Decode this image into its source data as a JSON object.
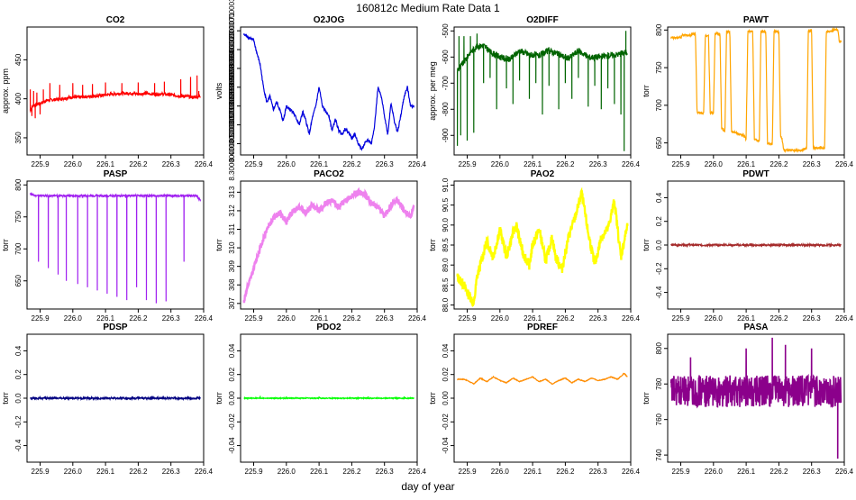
{
  "figure": {
    "title": "160812c   Medium Rate Data 1",
    "xlabel": "day of year"
  },
  "chart_data": [
    {
      "type": "line",
      "title": "CO2",
      "ylabel": "approx. ppm",
      "color": "#ff0000",
      "xlim": [
        225.86,
        226.4
      ],
      "ylim": [
        328,
        492
      ],
      "xticks": [
        225.9,
        226.0,
        226.1,
        226.2,
        226.3,
        226.4
      ],
      "yticks": [
        350,
        400,
        450
      ],
      "x": [
        225.87,
        225.88,
        225.9,
        225.92,
        225.95,
        225.98,
        226.0,
        226.02,
        226.05,
        226.08,
        226.1,
        226.12,
        226.15,
        226.18,
        226.2,
        226.22,
        226.25,
        226.28,
        226.3,
        226.32,
        226.35,
        226.37,
        226.39
      ],
      "y": [
        385,
        392,
        394,
        398,
        399,
        401,
        402,
        402,
        403,
        404,
        405,
        406,
        407,
        407,
        406,
        407,
        406,
        406,
        405,
        404,
        403,
        402,
        403
      ],
      "noise": 2,
      "spikes": [
        [
          225.87,
          412
        ],
        [
          225.875,
          378
        ],
        [
          225.88,
          410
        ],
        [
          225.885,
          375
        ],
        [
          225.89,
          408
        ],
        [
          225.9,
          380
        ],
        [
          225.91,
          412
        ],
        [
          225.93,
          420
        ],
        [
          225.96,
          418
        ],
        [
          226.0,
          420
        ],
        [
          226.03,
          418
        ],
        [
          226.06,
          419
        ],
        [
          226.1,
          421
        ],
        [
          226.15,
          420
        ],
        [
          226.2,
          421
        ],
        [
          226.25,
          420
        ],
        [
          226.28,
          422
        ],
        [
          226.33,
          425
        ],
        [
          226.36,
          428
        ],
        [
          226.38,
          430
        ],
        [
          226.385,
          410
        ]
      ]
    },
    {
      "type": "line",
      "title": "O2JOG",
      "ylabel": "volts",
      "color": "#0000dd",
      "xlim": [
        225.86,
        226.4
      ],
      "ylim": [
        8.24,
        8.92
      ],
      "xticks": [
        225.9,
        226.0,
        226.1,
        226.2,
        226.3,
        226.4
      ],
      "yticks": [
        8.3,
        8.4,
        8.5,
        8.6,
        8.7,
        8.8,
        8.9
      ],
      "x": [
        225.87,
        225.88,
        225.9,
        225.91,
        225.92,
        225.93,
        225.94,
        225.95,
        225.96,
        225.97,
        225.98,
        225.99,
        226.0,
        226.02,
        226.04,
        226.05,
        226.06,
        226.07,
        226.08,
        226.09,
        226.1,
        226.11,
        226.12,
        226.13,
        226.14,
        226.15,
        226.16,
        226.17,
        226.18,
        226.19,
        226.2,
        226.21,
        226.22,
        226.23,
        226.24,
        226.25,
        226.26,
        226.27,
        226.28,
        226.29,
        226.3,
        226.31,
        226.32,
        226.33,
        226.34,
        226.35,
        226.36,
        226.37,
        226.38,
        226.39
      ],
      "y": [
        8.88,
        8.87,
        8.85,
        8.78,
        8.72,
        8.6,
        8.52,
        8.55,
        8.48,
        8.52,
        8.48,
        8.42,
        8.5,
        8.47,
        8.4,
        8.47,
        8.42,
        8.35,
        8.44,
        8.5,
        8.6,
        8.5,
        8.47,
        8.45,
        8.37,
        8.43,
        8.37,
        8.35,
        8.38,
        8.36,
        8.33,
        8.35,
        8.3,
        8.27,
        8.3,
        8.32,
        8.3,
        8.4,
        8.6,
        8.55,
        8.45,
        8.35,
        8.52,
        8.42,
        8.36,
        8.45,
        8.55,
        8.6,
        8.5,
        8.5
      ],
      "noise": 0.008
    },
    {
      "type": "line",
      "title": "O2DIFF",
      "ylabel": "approx. per meg",
      "color": "#006400",
      "xlim": [
        225.86,
        226.4
      ],
      "ylim": [
        -975,
        -485
      ],
      "xticks": [
        225.9,
        226.0,
        226.1,
        226.2,
        226.3,
        226.4
      ],
      "yticks": [
        -900,
        -800,
        -700,
        -600,
        -500
      ],
      "x": [
        225.87,
        225.89,
        225.91,
        225.93,
        225.95,
        225.97,
        226.0,
        226.03,
        226.06,
        226.09,
        226.12,
        226.15,
        226.18,
        226.21,
        226.24,
        226.27,
        226.3,
        226.33,
        226.36,
        226.39
      ],
      "y": [
        -650,
        -620,
        -580,
        -560,
        -555,
        -580,
        -600,
        -610,
        -575,
        -590,
        -595,
        -575,
        -590,
        -605,
        -575,
        -600,
        -600,
        -595,
        -590,
        -580
      ],
      "noise": 12,
      "spikes": [
        [
          225.87,
          -940
        ],
        [
          225.875,
          -520
        ],
        [
          225.88,
          -900
        ],
        [
          225.89,
          -520
        ],
        [
          225.9,
          -920
        ],
        [
          225.91,
          -520
        ],
        [
          225.92,
          -890
        ],
        [
          225.93,
          -510
        ],
        [
          225.95,
          -700
        ],
        [
          225.97,
          -680
        ],
        [
          225.99,
          -800
        ],
        [
          226.02,
          -720
        ],
        [
          226.04,
          -780
        ],
        [
          226.06,
          -690
        ],
        [
          226.09,
          -760
        ],
        [
          226.11,
          -700
        ],
        [
          226.13,
          -820
        ],
        [
          226.15,
          -710
        ],
        [
          226.18,
          -800
        ],
        [
          226.2,
          -700
        ],
        [
          226.22,
          -760
        ],
        [
          226.24,
          -680
        ],
        [
          226.27,
          -790
        ],
        [
          226.29,
          -710
        ],
        [
          226.31,
          -800
        ],
        [
          226.33,
          -720
        ],
        [
          226.35,
          -780
        ],
        [
          226.37,
          -820
        ],
        [
          226.38,
          -960
        ],
        [
          226.385,
          -500
        ]
      ]
    },
    {
      "type": "line",
      "title": "PAWT",
      "ylabel": "torr",
      "color": "#ffa500",
      "xlim": [
        225.86,
        226.4
      ],
      "ylim": [
        634,
        804
      ],
      "xticks": [
        225.9,
        226.0,
        226.1,
        226.2,
        226.3,
        226.4
      ],
      "yticks": [
        650,
        700,
        750,
        800
      ],
      "x": [
        225.87,
        225.9,
        225.905,
        225.93,
        225.935,
        225.945,
        225.95,
        225.97,
        225.975,
        225.985,
        225.99,
        226.0,
        226.005,
        226.02,
        226.025,
        226.035,
        226.04,
        226.05,
        226.055,
        226.09,
        226.095,
        226.1,
        226.105,
        226.12,
        226.125,
        226.14,
        226.145,
        226.16,
        226.165,
        226.18,
        226.185,
        226.2,
        226.205,
        226.21,
        226.215,
        226.27,
        226.275,
        226.285,
        226.29,
        226.3,
        226.305,
        226.34,
        226.345,
        226.36,
        226.365,
        226.38,
        226.385,
        226.39
      ],
      "y": [
        790,
        790,
        793,
        793,
        795,
        795,
        690,
        690,
        793,
        793,
        690,
        690,
        795,
        795,
        670,
        665,
        798,
        798,
        665,
        660,
        658,
        655,
        798,
        798,
        655,
        652,
        798,
        798,
        650,
        648,
        798,
        798,
        660,
        655,
        640,
        640,
        642,
        642,
        798,
        800,
        643,
        643,
        798,
        798,
        800,
        800,
        785,
        785
      ],
      "noise": 1.5
    },
    {
      "type": "line",
      "title": "PASP",
      "ylabel": "torr",
      "color": "#a020f0",
      "xlim": [
        225.86,
        226.4
      ],
      "ylim": [
        606,
        806
      ],
      "xticks": [
        225.9,
        226.0,
        226.1,
        226.2,
        226.3,
        226.4
      ],
      "yticks": [
        650,
        700,
        750,
        800
      ],
      "x": [
        225.87,
        225.88,
        225.9,
        225.92,
        225.95,
        226.0,
        226.05,
        226.1,
        226.15,
        226.2,
        226.25,
        226.3,
        226.35,
        226.38,
        226.39
      ],
      "y": [
        786,
        784,
        783,
        783,
        783,
        783,
        783,
        783,
        783,
        783,
        783,
        783,
        783,
        783,
        775
      ],
      "noise": 1.5,
      "spikes": [
        [
          225.895,
          680
        ],
        [
          225.925,
          670
        ],
        [
          225.955,
          660
        ],
        [
          225.98,
          650
        ],
        [
          226.015,
          645
        ],
        [
          226.045,
          640
        ],
        [
          226.075,
          635
        ],
        [
          226.105,
          630
        ],
        [
          226.135,
          625
        ],
        [
          226.165,
          620
        ],
        [
          226.195,
          640
        ],
        [
          226.225,
          620
        ],
        [
          226.255,
          615
        ],
        [
          226.285,
          618
        ],
        [
          226.34,
          680
        ]
      ]
    },
    {
      "type": "line",
      "title": "PACO2",
      "ylabel": "torr",
      "color": "#ee82ee",
      "xlim": [
        225.86,
        226.4
      ],
      "ylim": [
        306.7,
        313.6
      ],
      "xticks": [
        225.9,
        226.0,
        226.1,
        226.2,
        226.3,
        226.4
      ],
      "yticks": [
        307,
        308,
        309,
        310,
        311,
        312,
        313
      ],
      "x": [
        225.87,
        225.88,
        225.89,
        225.9,
        225.92,
        225.94,
        225.96,
        225.98,
        226.0,
        226.02,
        226.04,
        226.06,
        226.08,
        226.1,
        226.12,
        226.14,
        226.16,
        226.18,
        226.2,
        226.22,
        226.24,
        226.26,
        226.28,
        226.3,
        226.32,
        226.34,
        226.36,
        226.38,
        226.39
      ],
      "y": [
        307.1,
        307.8,
        308.3,
        308.9,
        310.0,
        311.0,
        311.6,
        311.9,
        311.4,
        312.0,
        312.2,
        311.9,
        312.3,
        312.0,
        312.4,
        312.6,
        312.2,
        312.5,
        312.8,
        313.0,
        312.9,
        312.4,
        312.2,
        311.7,
        312.3,
        312.6,
        312.0,
        311.7,
        312.2
      ],
      "noise": 0.15
    },
    {
      "type": "line",
      "title": "PAO2",
      "ylabel": "torr",
      "color": "#ffff00",
      "xlim": [
        225.86,
        226.4
      ],
      "ylim": [
        87.9,
        91.1
      ],
      "xticks": [
        225.9,
        226.0,
        226.1,
        226.2,
        226.3,
        226.4
      ],
      "yticks": [
        88.0,
        88.5,
        89.0,
        89.5,
        90.0,
        90.5,
        91.0
      ],
      "x": [
        225.87,
        225.88,
        225.89,
        225.9,
        225.91,
        225.92,
        225.93,
        225.95,
        225.96,
        225.98,
        226.0,
        226.02,
        226.04,
        226.05,
        226.07,
        226.09,
        226.1,
        226.12,
        226.14,
        226.16,
        226.17,
        226.19,
        226.21,
        226.23,
        226.25,
        226.27,
        226.29,
        226.31,
        226.33,
        226.35,
        226.37,
        226.38,
        226.39
      ],
      "y": [
        88.7,
        88.6,
        88.5,
        88.3,
        88.2,
        88.0,
        88.7,
        89.3,
        89.6,
        89.2,
        89.9,
        89.2,
        89.8,
        90.0,
        89.3,
        89.0,
        89.5,
        89.9,
        89.1,
        89.7,
        89.2,
        88.9,
        89.7,
        90.2,
        90.8,
        89.8,
        89.0,
        89.7,
        89.9,
        90.6,
        89.2,
        89.6,
        90.0
      ],
      "noise": 0.12
    },
    {
      "type": "line",
      "title": "PDWT",
      "ylabel": "torr",
      "color": "#a52a2a",
      "xlim": [
        225.86,
        226.4
      ],
      "ylim": [
        -0.54,
        0.54
      ],
      "xticks": [
        225.9,
        226.0,
        226.1,
        226.2,
        226.3,
        226.4
      ],
      "yticks": [
        -0.4,
        -0.2,
        0.0,
        0.2,
        0.4
      ],
      "x": [
        225.87,
        226.39
      ],
      "y": [
        0.0,
        0.0
      ],
      "noise": 0.008
    },
    {
      "type": "line",
      "title": "PDSP",
      "ylabel": "torr",
      "color": "#000080",
      "xlim": [
        225.86,
        226.4
      ],
      "ylim": [
        -0.54,
        0.54
      ],
      "xticks": [
        225.9,
        226.0,
        226.1,
        226.2,
        226.3,
        226.4
      ],
      "yticks": [
        -0.4,
        -0.2,
        0.0,
        0.2,
        0.4
      ],
      "x": [
        225.87,
        226.39
      ],
      "y": [
        0.0,
        0.0
      ],
      "noise": 0.008
    },
    {
      "type": "line",
      "title": "PDO2",
      "ylabel": "torr",
      "color": "#00ff00",
      "xlim": [
        225.86,
        226.4
      ],
      "ylim": [
        -0.054,
        0.054
      ],
      "xticks": [
        225.9,
        226.0,
        226.1,
        226.2,
        226.3,
        226.4
      ],
      "yticks": [
        -0.04,
        -0.02,
        0.0,
        0.02,
        0.04
      ],
      "x": [
        225.87,
        226.39
      ],
      "y": [
        0.0,
        0.0
      ],
      "noise": 0.0004,
      "spikes": [
        [
          225.92,
          0.002
        ],
        [
          226.0,
          0.0015
        ],
        [
          226.1,
          0.0015
        ],
        [
          226.25,
          0.0015
        ],
        [
          226.36,
          0.0015
        ]
      ]
    },
    {
      "type": "line",
      "title": "PDREF",
      "ylabel": "torr",
      "color": "#ff8c00",
      "xlim": [
        225.86,
        226.4
      ],
      "ylim": [
        -0.054,
        0.054
      ],
      "xticks": [
        225.9,
        226.0,
        226.1,
        226.2,
        226.3,
        226.4
      ],
      "yticks": [
        -0.04,
        -0.02,
        0.0,
        0.02,
        0.04
      ],
      "x": [
        225.87,
        225.89,
        225.9,
        225.92,
        225.94,
        225.96,
        225.98,
        226.0,
        226.02,
        226.04,
        226.06,
        226.08,
        226.1,
        226.12,
        226.14,
        226.16,
        226.18,
        226.2,
        226.22,
        226.24,
        226.26,
        226.28,
        226.3,
        226.32,
        226.34,
        226.36,
        226.38,
        226.39
      ],
      "y": [
        0.016,
        0.016,
        0.015,
        0.012,
        0.017,
        0.014,
        0.018,
        0.015,
        0.013,
        0.017,
        0.014,
        0.016,
        0.018,
        0.014,
        0.016,
        0.012,
        0.015,
        0.017,
        0.013,
        0.016,
        0.014,
        0.017,
        0.015,
        0.016,
        0.018,
        0.016,
        0.021,
        0.018
      ],
      "noise": 0.0003
    },
    {
      "type": "line",
      "title": "PASA",
      "ylabel": "torr",
      "color": "#8b008b",
      "xlim": [
        225.86,
        226.4
      ],
      "ylim": [
        736,
        808
      ],
      "xticks": [
        225.9,
        226.0,
        226.1,
        226.2,
        226.3,
        226.4
      ],
      "yticks": [
        740,
        760,
        780,
        800
      ],
      "x": [
        225.87,
        226.39
      ],
      "y": [
        776,
        776
      ],
      "noise": 9,
      "spikes": [
        [
          226.18,
          806
        ],
        [
          226.22,
          802
        ],
        [
          226.3,
          800
        ],
        [
          226.38,
          738
        ],
        [
          225.93,
          795
        ],
        [
          226.1,
          800
        ]
      ]
    }
  ]
}
